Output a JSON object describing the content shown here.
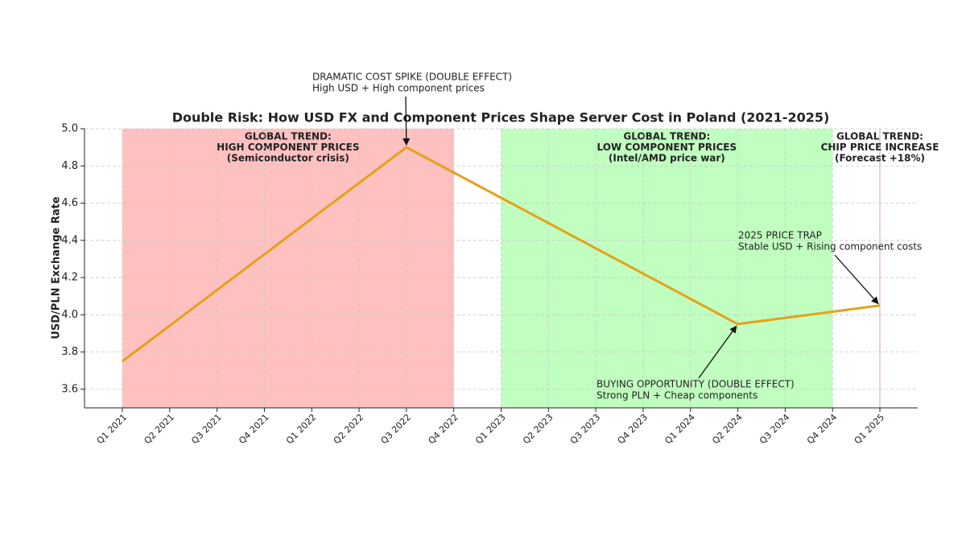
{
  "chart_data": {
    "type": "line",
    "title": "Double Risk: How USD FX and Component Prices Shape Server Cost in Poland (2021-2025)",
    "ylabel": "USD/PLN Exchange Rate",
    "categories": [
      "Q1 2021",
      "Q2 2021",
      "Q3 2021",
      "Q4 2021",
      "Q1 2022",
      "Q2 2022",
      "Q3 2022",
      "Q4 2022",
      "Q1 2023",
      "Q2 2023",
      "Q3 2023",
      "Q4 2023",
      "Q1 2024",
      "Q2 2024",
      "Q3 2024",
      "Q4 2024",
      "Q1 2025"
    ],
    "x": [
      "Q1 2021",
      "Q3 2022",
      "Q2 2024",
      "Q1 2025"
    ],
    "values": [
      3.75,
      4.9,
      3.95,
      4.05
    ],
    "color": "#e6a117",
    "ylim": [
      3.5,
      5.0
    ],
    "yticks": [
      {
        "value": 3.6,
        "label": "3.6"
      },
      3.8,
      {
        "value": 4.0,
        "label": "4.0"
      },
      4.2,
      4.4,
      4.6,
      4.8,
      {
        "value": 5.0,
        "label": "5.0"
      }
    ],
    "grid": true,
    "regions": [
      {
        "start": "Q1 2021",
        "end": "Q4 2022",
        "color": "#ffc0c0",
        "label": [
          "GLOBAL TREND:",
          "HIGH COMPONENT PRICES",
          "(Semiconductor crisis)"
        ]
      },
      {
        "start": "Q1 2023",
        "end": "Q4 2024",
        "color": "#c0ffc0",
        "label": [
          "GLOBAL TREND:",
          "LOW COMPONENT PRICES",
          "(Intel/AMD price war)"
        ]
      },
      {
        "start": "Q1 2025",
        "end": "Q1 2025",
        "color": "#f0c0c0",
        "label": [
          "GLOBAL TREND:",
          "CHIP PRICE INCREASE",
          "(Forecast +18%)"
        ]
      }
    ],
    "annotations": [
      {
        "text": [
          "DRAMATIC COST SPIKE (DOUBLE EFFECT)",
          "High USD + High component prices"
        ]
      },
      {
        "text": [
          "2025 PRICE TRAP",
          "Stable USD + Rising component costs"
        ]
      },
      {
        "text": [
          "BUYING OPPORTUNITY (DOUBLE EFFECT)",
          "Strong PLN + Cheap components"
        ]
      }
    ]
  }
}
